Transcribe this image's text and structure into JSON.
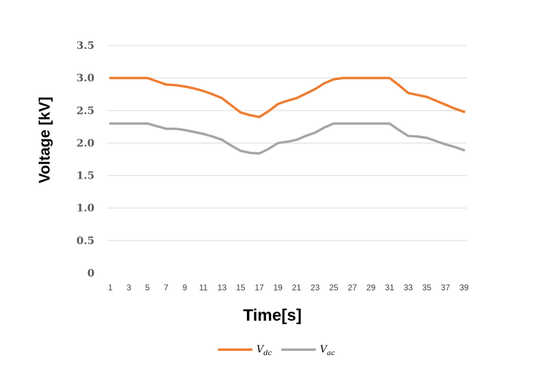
{
  "chart_data": {
    "type": "line",
    "xlabel": "Time[s]",
    "ylabel": "Voltage [kV]",
    "ylim": [
      0,
      3.5
    ],
    "yticks": [
      "0",
      "0.5",
      "1.0",
      "1.5",
      "2.0",
      "2.5",
      "3.0",
      "3.5"
    ],
    "x": [
      1,
      2,
      3,
      4,
      5,
      6,
      7,
      8,
      9,
      10,
      11,
      12,
      13,
      14,
      15,
      16,
      17,
      18,
      19,
      20,
      21,
      22,
      23,
      24,
      25,
      26,
      27,
      28,
      29,
      30,
      31,
      32,
      33,
      34,
      35,
      36,
      37,
      38,
      39
    ],
    "xtick_labels": [
      "1",
      "3",
      "5",
      "7",
      "9",
      "11",
      "13",
      "15",
      "17",
      "19",
      "21",
      "23",
      "25",
      "27",
      "29",
      "31",
      "33",
      "35",
      "37",
      "39"
    ],
    "grid": true,
    "legend_position": "bottom",
    "series": [
      {
        "name": "V_dc",
        "label_main": "V",
        "label_sub": "dc",
        "color": "#ed7d31",
        "values": [
          3.0,
          3.0,
          3.0,
          3.0,
          3.0,
          2.95,
          2.9,
          2.89,
          2.87,
          2.84,
          2.8,
          2.75,
          2.69,
          2.58,
          2.47,
          2.43,
          2.4,
          2.49,
          2.6,
          2.65,
          2.69,
          2.76,
          2.83,
          2.92,
          2.98,
          3.0,
          3.0,
          3.0,
          3.0,
          3.0,
          3.0,
          2.89,
          2.77,
          2.74,
          2.71,
          2.65,
          2.59,
          2.53,
          2.48
        ]
      },
      {
        "name": "V_ac",
        "label_main": "V",
        "label_sub": "ac",
        "color": "#a5a5a5",
        "values": [
          2.3,
          2.3,
          2.3,
          2.3,
          2.3,
          2.26,
          2.22,
          2.22,
          2.2,
          2.17,
          2.14,
          2.1,
          2.05,
          1.96,
          1.88,
          1.85,
          1.84,
          1.91,
          2.0,
          2.02,
          2.05,
          2.11,
          2.16,
          2.24,
          2.3,
          2.3,
          2.3,
          2.3,
          2.3,
          2.3,
          2.3,
          2.2,
          2.11,
          2.1,
          2.08,
          2.03,
          1.98,
          1.94,
          1.89
        ]
      }
    ]
  }
}
